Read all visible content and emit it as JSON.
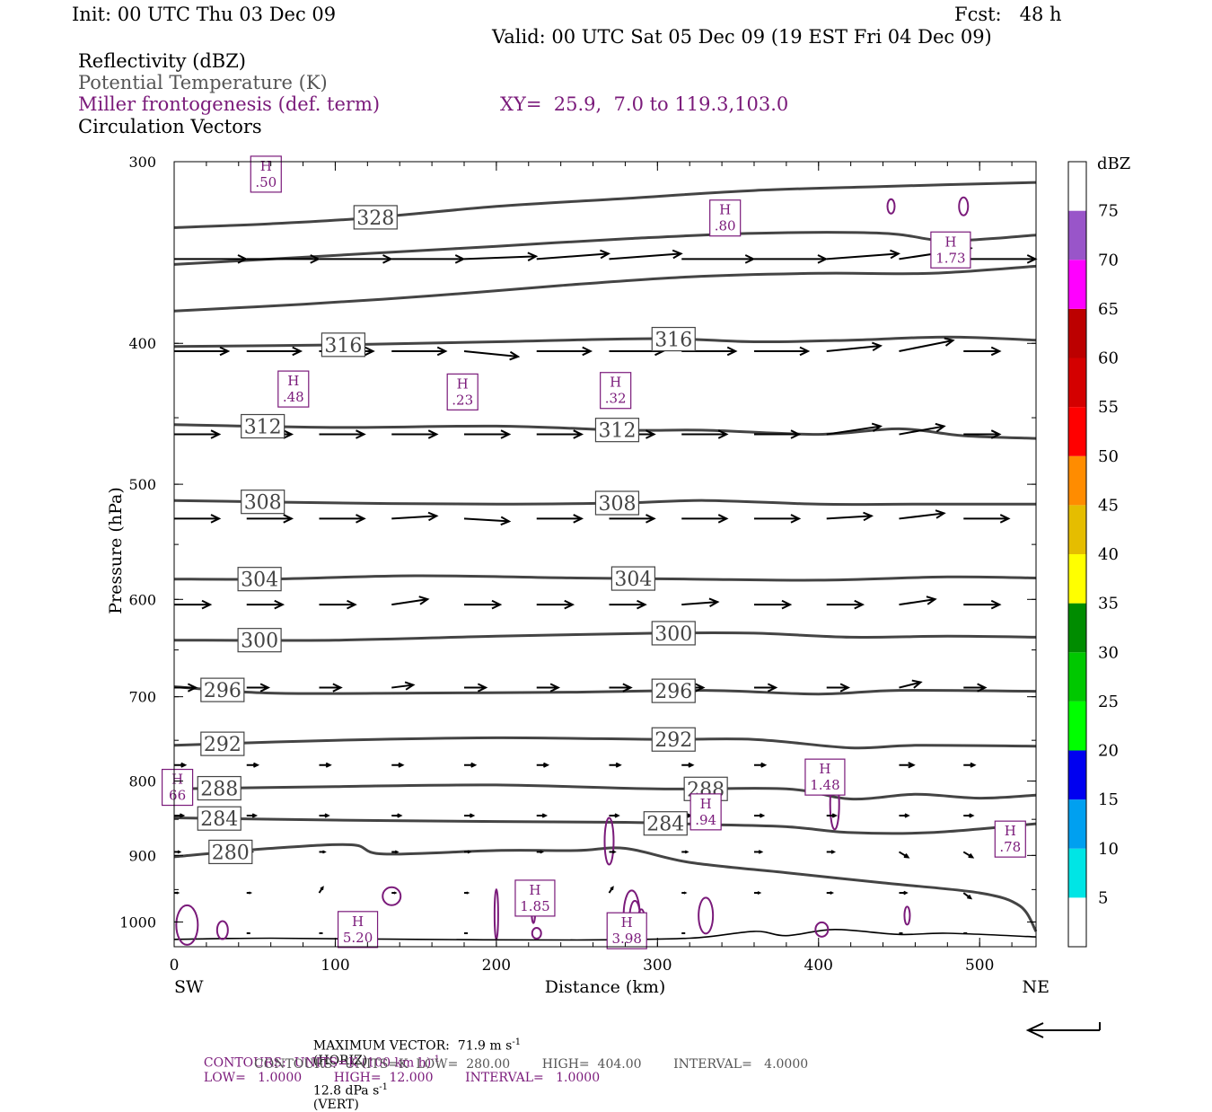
{
  "header": {
    "init": "Init: 00 UTC Thu 03 Dec 09",
    "fcst": "Fcst:   48 h",
    "valid": "Valid: 00 UTC Sat 05 Dec 09 (19 EST Fri 04 Dec 09)",
    "field1": "Reflectivity (dBZ)",
    "field2": "Potential Temperature (K)",
    "field3": "Miller frontogenesis (def. term)",
    "xy": "XY=  25.9,  7.0 to 119.3,103.0",
    "field4": "Circulation Vectors"
  },
  "footer": {
    "maxvec_a": "MAXIMUM VECTOR:  71.9 m s",
    "maxvec_a_sup": "-1",
    "maxvec_b": "(HORIZ)",
    "maxvec_c": "12.8 dPa s",
    "maxvec_c_sup": "-1",
    "maxvec_d": "(VERT)",
    "contours1_a": "CONTOURS:  UNITS=K (100 km h)",
    "contours1_sup": "-1",
    "contours1_b": "LOW=   1.0000        HIGH=  12.000        INTERVAL=   1.0000",
    "contours2": "CONTOURS:  UNITS=K  LOW=  280.00        HIGH=  404.00        INTERVAL=   4.0000"
  },
  "colors": {
    "theta": "#444444",
    "frontogenesis": "#7a1a7a",
    "vector": "#000000"
  },
  "chart_data": {
    "type": "cross-section",
    "xlabel": "Distance (km)",
    "ylabel": "Pressure (hPa)",
    "xlim": [
      0,
      535
    ],
    "ylim": [
      1040,
      300
    ],
    "y_scale": "log",
    "x_ticks": [
      0,
      100,
      200,
      300,
      400,
      500
    ],
    "y_ticks": [
      300,
      400,
      500,
      600,
      700,
      800,
      900,
      1000
    ],
    "x_end_labels": {
      "left": "SW",
      "right": "NE"
    },
    "colorbar": {
      "unit": "dBZ",
      "levels": [
        5,
        10,
        15,
        20,
        25,
        30,
        35,
        40,
        45,
        50,
        55,
        60,
        65,
        70,
        75
      ],
      "colors": [
        "#ffffff",
        "#00e5e5",
        "#00a0f0",
        "#0000f0",
        "#00ff00",
        "#00c800",
        "#008c00",
        "#ffff00",
        "#e5bd00",
        "#ff8c00",
        "#ff0000",
        "#d40000",
        "#bc0000",
        "#ff00ff",
        "#9955c9",
        "#ffffff"
      ]
    },
    "theta_contours": [
      {
        "value": 328,
        "label": "328",
        "label_x": 125,
        "points": [
          [
            0,
            333
          ],
          [
            60,
            331
          ],
          [
            120,
            328
          ],
          [
            200,
            322
          ],
          [
            280,
            318
          ],
          [
            360,
            314
          ],
          [
            440,
            312
          ],
          [
            535,
            310
          ]
        ]
      },
      {
        "value": 324,
        "label": "",
        "points": [
          [
            0,
            353
          ],
          [
            60,
            350
          ],
          [
            120,
            347
          ],
          [
            200,
            343
          ],
          [
            280,
            339
          ],
          [
            360,
            336
          ],
          [
            440,
            336
          ],
          [
            480,
            340
          ],
          [
            535,
            337
          ]
        ]
      },
      {
        "value": 320,
        "label": "",
        "points": [
          [
            0,
            380
          ],
          [
            80,
            376
          ],
          [
            160,
            371
          ],
          [
            240,
            365
          ],
          [
            320,
            360
          ],
          [
            400,
            358
          ],
          [
            470,
            358
          ],
          [
            535,
            354
          ]
        ]
      },
      {
        "value": 316,
        "label": "316",
        "label_x": 105,
        "label2": "316",
        "label2_x": 310,
        "points": [
          [
            0,
            402
          ],
          [
            100,
            401
          ],
          [
            200,
            399
          ],
          [
            300,
            397
          ],
          [
            360,
            399
          ],
          [
            420,
            398
          ],
          [
            480,
            396
          ],
          [
            535,
            398
          ]
        ]
      },
      {
        "value": 312,
        "label": "312",
        "label_x": 55,
        "label2": "312",
        "label2_x": 275,
        "points": [
          [
            0,
            455
          ],
          [
            100,
            457
          ],
          [
            200,
            456
          ],
          [
            280,
            459
          ],
          [
            330,
            459
          ],
          [
            400,
            462
          ],
          [
            450,
            458
          ],
          [
            490,
            463
          ],
          [
            535,
            465
          ]
        ]
      },
      {
        "value": 308,
        "label": "308",
        "label_x": 55,
        "label2": "308",
        "label2_x": 275,
        "points": [
          [
            0,
            513
          ],
          [
            100,
            515
          ],
          [
            200,
            516
          ],
          [
            280,
            515
          ],
          [
            330,
            513
          ],
          [
            400,
            516
          ],
          [
            460,
            516
          ],
          [
            535,
            516
          ]
        ]
      },
      {
        "value": 304,
        "label": "304",
        "label_x": 53,
        "label2": "304",
        "label2_x": 285,
        "points": [
          [
            0,
            581
          ],
          [
            60,
            581
          ],
          [
            150,
            578
          ],
          [
            250,
            580
          ],
          [
            320,
            581
          ],
          [
            400,
            582
          ],
          [
            480,
            579
          ],
          [
            535,
            580
          ]
        ]
      },
      {
        "value": 300,
        "label": "300",
        "label_x": 53,
        "label2": "300",
        "label2_x": 310,
        "points": [
          [
            0,
            640
          ],
          [
            100,
            640
          ],
          [
            200,
            636
          ],
          [
            300,
            633
          ],
          [
            360,
            633
          ],
          [
            420,
            637
          ],
          [
            480,
            636
          ],
          [
            535,
            637
          ]
        ]
      },
      {
        "value": 296,
        "label": "296",
        "label_x": 30,
        "label2": "296",
        "label2_x": 310,
        "points": [
          [
            0,
            689
          ],
          [
            60,
            696
          ],
          [
            150,
            696
          ],
          [
            250,
            695
          ],
          [
            330,
            693
          ],
          [
            400,
            697
          ],
          [
            450,
            693
          ],
          [
            535,
            694
          ]
        ]
      },
      {
        "value": 292,
        "label": "292",
        "label_x": 30,
        "label2": "292",
        "label2_x": 310,
        "points": [
          [
            0,
            756
          ],
          [
            100,
            750
          ],
          [
            200,
            747
          ],
          [
            300,
            749
          ],
          [
            360,
            749
          ],
          [
            420,
            759
          ],
          [
            460,
            756
          ],
          [
            535,
            757
          ]
        ]
      },
      {
        "value": 288,
        "label": "288",
        "label_x": 28,
        "label2": "288",
        "label2_x": 330,
        "points": [
          [
            0,
            810
          ],
          [
            100,
            807
          ],
          [
            200,
            805
          ],
          [
            300,
            810
          ],
          [
            380,
            810
          ],
          [
            420,
            823
          ],
          [
            460,
            817
          ],
          [
            500,
            822
          ],
          [
            535,
            818
          ]
        ]
      },
      {
        "value": 284,
        "label": "284",
        "label_x": 28,
        "label2": "284",
        "label2_x": 305,
        "points": [
          [
            0,
            848
          ],
          [
            100,
            851
          ],
          [
            200,
            853
          ],
          [
            280,
            854
          ],
          [
            330,
            857
          ],
          [
            380,
            860
          ],
          [
            420,
            868
          ],
          [
            470,
            868
          ],
          [
            535,
            856
          ]
        ]
      },
      {
        "value": 280,
        "label": "280",
        "label_x": 35,
        "points": [
          [
            0,
            902
          ],
          [
            60,
            890
          ],
          [
            110,
            885
          ],
          [
            130,
            898
          ],
          [
            200,
            893
          ],
          [
            250,
            893
          ],
          [
            280,
            890
          ],
          [
            320,
            910
          ],
          [
            380,
            925
          ],
          [
            440,
            940
          ],
          [
            500,
            955
          ],
          [
            525,
            975
          ],
          [
            535,
            1015
          ]
        ]
      }
    ],
    "terrain_line": [
      [
        0,
        1028
      ],
      [
        60,
        1026
      ],
      [
        150,
        1028
      ],
      [
        250,
        1029
      ],
      [
        320,
        1026
      ],
      [
        360,
        1015
      ],
      [
        380,
        1022
      ],
      [
        410,
        1012
      ],
      [
        450,
        1020
      ],
      [
        480,
        1018
      ],
      [
        535,
        1024
      ]
    ],
    "frontogenesis_maxima": [
      {
        "label": "H",
        "value": ".50",
        "x": 57,
        "p": 306
      },
      {
        "label": "H",
        "value": ".80",
        "x": 342,
        "p": 328
      },
      {
        "label": "H",
        "value": "1.73",
        "x": 482,
        "p": 345
      },
      {
        "label": "H",
        "value": ".48",
        "x": 74,
        "p": 430
      },
      {
        "label": "H",
        "value": ".23",
        "x": 179,
        "p": 432
      },
      {
        "label": "H",
        "value": ".32",
        "x": 274,
        "p": 431
      },
      {
        "label": "H",
        "value": "1.48",
        "x": 404,
        "p": 795
      },
      {
        "label": "H",
        "value": ".94",
        "x": 330,
        "p": 840
      },
      {
        "label": "H",
        "value": ".78",
        "x": 519,
        "p": 877
      },
      {
        "label": "H",
        "value": "1.85",
        "x": 224,
        "p": 963
      },
      {
        "label": "H",
        "value": "5.20",
        "x": 114,
        "p": 1012
      },
      {
        "label": "H",
        "value": "3.98",
        "x": 281,
        "p": 1014
      },
      {
        "label": "H",
        "value": "66",
        "x": 2,
        "p": 808
      }
    ],
    "vectors": [
      {
        "p": 350,
        "x": [
          0,
          45,
          90,
          135,
          180,
          225,
          270,
          315,
          360,
          405,
          450,
          490
        ],
        "u": [
          40,
          40,
          40,
          40,
          40,
          40,
          40,
          40,
          40,
          40,
          40,
          40
        ],
        "w": [
          0,
          0,
          0,
          0,
          0.5,
          1,
          1,
          0,
          0,
          1,
          2,
          0
        ]
      },
      {
        "p": 405,
        "x": [
          0,
          45,
          90,
          135,
          180,
          225,
          270,
          315,
          360,
          405,
          450,
          490
        ],
        "u": [
          30,
          30,
          30,
          30,
          30,
          30,
          30,
          30,
          30,
          30,
          30,
          20
        ],
        "w": [
          0,
          0,
          0,
          0,
          -1,
          0,
          0,
          0,
          0,
          1,
          2,
          0
        ]
      },
      {
        "p": 462,
        "x": [
          0,
          45,
          90,
          135,
          180,
          225,
          270,
          315,
          360,
          405,
          450,
          490
        ],
        "u": [
          25,
          25,
          25,
          25,
          25,
          25,
          25,
          25,
          25,
          30,
          25,
          20
        ],
        "w": [
          0,
          0,
          0,
          0,
          0,
          0,
          0,
          0,
          0,
          1.5,
          1.5,
          0
        ]
      },
      {
        "p": 528,
        "x": [
          0,
          45,
          90,
          135,
          180,
          225,
          270,
          315,
          360,
          405,
          450,
          490
        ],
        "u": [
          25,
          25,
          25,
          25,
          25,
          25,
          25,
          25,
          25,
          25,
          25,
          25
        ],
        "w": [
          0,
          0,
          0,
          0.5,
          -0.5,
          0,
          0,
          0,
          0,
          0.5,
          1,
          0
        ]
      },
      {
        "p": 605,
        "x": [
          0,
          45,
          90,
          135,
          180,
          225,
          270,
          315,
          360,
          405,
          450,
          490
        ],
        "u": [
          20,
          20,
          20,
          20,
          20,
          20,
          20,
          20,
          20,
          20,
          20,
          20
        ],
        "w": [
          0,
          0,
          0,
          1,
          0,
          0,
          0,
          0.5,
          0,
          0,
          1,
          0
        ]
      },
      {
        "p": 690,
        "x": [
          0,
          45,
          90,
          135,
          180,
          225,
          270,
          315,
          360,
          405,
          450,
          490
        ],
        "u": [
          12,
          12,
          12,
          12,
          12,
          12,
          12,
          12,
          12,
          12,
          12,
          12
        ],
        "w": [
          0,
          0,
          0,
          0.5,
          0,
          0,
          0,
          0,
          0,
          0,
          1,
          0
        ]
      },
      {
        "p": 780,
        "x": [
          0,
          45,
          90,
          135,
          180,
          225,
          270,
          315,
          360,
          405,
          450,
          490
        ],
        "u": [
          6,
          6,
          6,
          6,
          6,
          6,
          6,
          6,
          6,
          6,
          8,
          6
        ],
        "w": [
          0,
          0,
          0,
          0,
          0,
          0,
          0,
          0,
          0,
          -2,
          0,
          0
        ]
      },
      {
        "p": 845,
        "x": [
          0,
          45,
          90,
          135,
          180,
          225,
          270,
          315,
          360,
          405,
          450,
          490
        ],
        "u": [
          5,
          5,
          5,
          5,
          5,
          5,
          5,
          5,
          5,
          5,
          5,
          5
        ],
        "w": [
          0,
          0,
          0,
          0,
          0,
          0,
          0,
          0,
          0,
          0,
          0,
          0
        ]
      },
      {
        "p": 895,
        "x": [
          0,
          45,
          90,
          135,
          180,
          225,
          270,
          315,
          360,
          405,
          450,
          490
        ],
        "u": [
          3,
          3,
          3,
          3,
          3,
          3,
          3,
          3,
          4,
          4,
          5,
          5
        ],
        "w": [
          0,
          0,
          0,
          0,
          0,
          0,
          0,
          0,
          0,
          0,
          -1,
          -1
        ]
      },
      {
        "p": 955,
        "x": [
          0,
          45,
          90,
          135,
          180,
          225,
          270,
          315,
          360,
          405,
          450,
          490
        ],
        "u": [
          2,
          2,
          2,
          2,
          2,
          2,
          2,
          2,
          3,
          3,
          4,
          4
        ],
        "w": [
          0,
          0,
          1,
          0,
          0,
          0,
          1,
          0,
          0,
          0,
          0,
          -1
        ]
      },
      {
        "p": 1018,
        "x": [
          45,
          90,
          180,
          315,
          450,
          490
        ],
        "u": [
          1,
          1,
          1,
          1,
          1,
          1
        ],
        "w": [
          0,
          0,
          0,
          0,
          0,
          0
        ]
      }
    ],
    "reference_vector": {
      "direction": "left"
    }
  }
}
